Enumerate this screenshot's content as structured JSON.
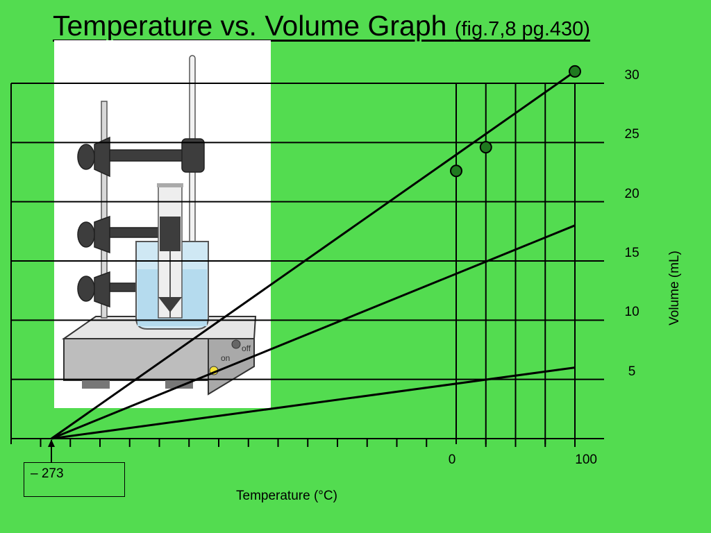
{
  "title": "Temperature vs. Volume Graph",
  "title_sub": "(fig.7,8 pg.430)",
  "apparatus_icon": "thermometer-ring-stand-beaker-hotplate",
  "colors": {
    "background": "#53dc50",
    "line": "#000000",
    "point": "#1f7a1f"
  },
  "chart_data": {
    "type": "line",
    "title": "Temperature vs. Volume Graph",
    "xlabel": "Temperature (°C)",
    "ylabel": "Volume (mL)",
    "x_ticks": [
      0,
      100
    ],
    "y_ticks": [
      5,
      10,
      15,
      20,
      25,
      30
    ],
    "absolute_zero_label": "– 273",
    "xlim": [
      -273,
      100
    ],
    "ylim": [
      0,
      30
    ],
    "grid": true,
    "series": [
      {
        "x": [
          -273,
          0,
          25,
          100
        ],
        "y": [
          0,
          22.6,
          24.6,
          31.0
        ],
        "points_x": [
          0,
          25,
          100
        ],
        "points_y": [
          22.6,
          24.6,
          31.0
        ]
      },
      {
        "x": [
          -273,
          100
        ],
        "y": [
          0,
          18.0
        ]
      },
      {
        "x": [
          -273,
          100
        ],
        "y": [
          0,
          6.0
        ]
      }
    ]
  }
}
